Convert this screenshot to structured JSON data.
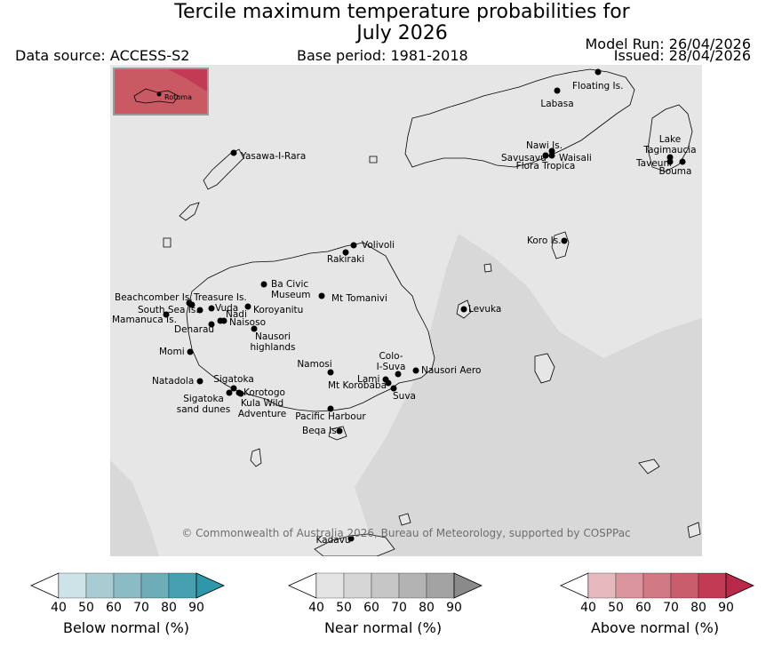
{
  "header": {
    "title_line1": "Tercile maximum temperature probabilities for",
    "title_line2": "July 2026",
    "data_source": "Data source: ACCESS-S2",
    "base_period": "Base period: 1981-2018",
    "model_run": "Model Run: 26/04/2026",
    "issued": "Issued: 28/04/2026"
  },
  "map": {
    "copyright": "© Commonwealth of Australia 2026, Bureau of Meteorology, supported by COSPPac",
    "inset_label": "Rotuma",
    "places": [
      {
        "id": "floating-is",
        "label": "Floating Is."
      },
      {
        "id": "labasa",
        "label": "Labasa"
      },
      {
        "id": "yasawa",
        "label": "Yasawa-I-Rara"
      },
      {
        "id": "nawi",
        "label": "Nawi Is."
      },
      {
        "id": "savusavu",
        "label": "Savusavu"
      },
      {
        "id": "waisali",
        "label": "Waisali"
      },
      {
        "id": "flora-tropica",
        "label": "Flora Tropica"
      },
      {
        "id": "lake-tagimaucia",
        "label": "Lake\nTagimaucia"
      },
      {
        "id": "taveuni",
        "label": "Taveuni"
      },
      {
        "id": "bouma",
        "label": "Bouma"
      },
      {
        "id": "koro",
        "label": "Koro Is."
      },
      {
        "id": "volivoli",
        "label": "Volivoli"
      },
      {
        "id": "rakiraki",
        "label": "Rakiraki"
      },
      {
        "id": "ba-civic",
        "label": "Ba Civic\nMuseum"
      },
      {
        "id": "mt-tomanivi",
        "label": "Mt Tomanivi"
      },
      {
        "id": "beachcomber",
        "label": "Beachcomber Is."
      },
      {
        "id": "treasure",
        "label": "Treasure Is."
      },
      {
        "id": "south-sea",
        "label": "South Sea Is."
      },
      {
        "id": "vuda",
        "label": "Vuda"
      },
      {
        "id": "koroyanitu",
        "label": "Koroyanitu"
      },
      {
        "id": "nadi",
        "label": "Nadi"
      },
      {
        "id": "mamanuca",
        "label": "Mamanuca Is."
      },
      {
        "id": "naisoso",
        "label": "Naisoso"
      },
      {
        "id": "denarau",
        "label": "Denarau"
      },
      {
        "id": "levuka",
        "label": "Levuka"
      },
      {
        "id": "nausori-highlands",
        "label": "Nausori\nhighlands"
      },
      {
        "id": "momi",
        "label": "Momi"
      },
      {
        "id": "colo-i-suva",
        "label": "Colo-\nI-Suva"
      },
      {
        "id": "namosi",
        "label": "Namosi"
      },
      {
        "id": "nausori-aero",
        "label": "Nausori Aero"
      },
      {
        "id": "lami",
        "label": "Lami"
      },
      {
        "id": "mt-korobaba",
        "label": "Mt Korobaba"
      },
      {
        "id": "suva",
        "label": "Suva"
      },
      {
        "id": "natadola",
        "label": "Natadola"
      },
      {
        "id": "sigatoka",
        "label": "Sigatoka"
      },
      {
        "id": "korotogo",
        "label": "Korotogo"
      },
      {
        "id": "sigatoka-dunes",
        "label": "Sigatoka\nsand dunes"
      },
      {
        "id": "kula",
        "label": "Kula Wild\nAdventure"
      },
      {
        "id": "pacific-harbour",
        "label": "Pacific Harbour"
      },
      {
        "id": "beqa",
        "label": "Beqa Is."
      },
      {
        "id": "kadavu",
        "label": "Kadavu"
      }
    ]
  },
  "legend": {
    "colorbars": [
      {
        "id": "below",
        "label": "Below normal (%)",
        "ticks": [
          "40",
          "50",
          "60",
          "70",
          "80",
          "90"
        ],
        "colors": [
          "#cde3e8",
          "#a9ccd2",
          "#8bbbc4",
          "#6eacb8",
          "#45a1b2",
          "#2e97aa"
        ]
      },
      {
        "id": "near",
        "label": "Near normal (%)",
        "ticks": [
          "40",
          "50",
          "60",
          "70",
          "80",
          "90"
        ],
        "colors": [
          "#e4e4e4",
          "#d6d6d6",
          "#c6c6c6",
          "#b3b3b3",
          "#a3a3a3",
          "#8a8a8a"
        ]
      },
      {
        "id": "above",
        "label": "Above normal (%)",
        "ticks": [
          "40",
          "50",
          "60",
          "70",
          "80",
          "90"
        ],
        "colors": [
          "#e6b9bf",
          "#db959e",
          "#d17985",
          "#c85d6b",
          "#c23a53",
          "#b82848"
        ]
      }
    ]
  },
  "colors": {
    "ocean_base": "#e6e6e6",
    "near_normal_shade": "#d8d8d8",
    "above_normal_shade": "#c95a64"
  }
}
